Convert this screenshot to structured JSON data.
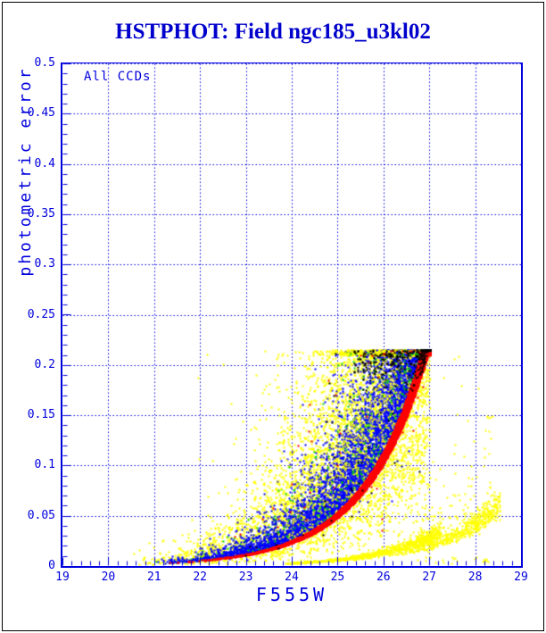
{
  "window": {
    "background": "#ffffff",
    "border_color": "#000000"
  },
  "title": {
    "text": "HSTPHOT: Field ngc185_u3kl02",
    "color": "#0000cc"
  },
  "annotation": {
    "text": "All CCDs"
  },
  "axes": {
    "color": "#0000dd",
    "x": {
      "label": "F555W",
      "min": 19,
      "max": 29,
      "tick_labels": [
        "19",
        "20",
        "21",
        "22",
        "23",
        "24",
        "25",
        "26",
        "27",
        "28",
        "29"
      ],
      "tick_values": [
        19,
        20,
        21,
        22,
        23,
        24,
        25,
        26,
        27,
        28,
        29
      ],
      "minor_step": 0.2
    },
    "y": {
      "label": "photometric error",
      "min": 0,
      "max": 0.5,
      "tick_labels": [
        "0",
        "0.05",
        "0.1",
        "0.15",
        "0.2",
        "0.25",
        "0.3",
        "0.35",
        "0.4",
        "0.45",
        "0.5"
      ],
      "tick_values": [
        0,
        0.05,
        0.1,
        0.15,
        0.2,
        0.25,
        0.3,
        0.35,
        0.4,
        0.45,
        0.5
      ],
      "minor_step": 0.01
    }
  },
  "chart_data": {
    "type": "scatter",
    "title": "HSTPHOT: Field ngc185_u3kl02",
    "xlabel": "F555W",
    "ylabel": "photometric error",
    "annotation": "All CCDs",
    "xlim": [
      19,
      29
    ],
    "ylim": [
      0,
      0.5
    ],
    "grid": "dotted blue lines at every major tick (x: each integer mag, y: each 0.05)",
    "legend": "none (colors denote CCD/detection populations, not labeled on plot)",
    "error_cap": 0.215,
    "error_floor_curve": {
      "description": "lower envelope of photometric error vs magnitude (red sequence), error ~ 0.215*exp(0.75*(m-27)), truncated at error_cap",
      "m": [
        21.0,
        22.0,
        23.0,
        24.0,
        25.0,
        26.0,
        26.5,
        27.0
      ],
      "e": [
        0.0024,
        0.005,
        0.011,
        0.023,
        0.048,
        0.102,
        0.148,
        0.215
      ]
    },
    "populations": [
      {
        "color": "#ffff00",
        "name": "yellow cloud",
        "approx_points": 7000,
        "m_range": [
          20.4,
          27.0
        ],
        "behavior": "widest scatter above floor, reaches error cap 0.215 from m~24 onward; sparse bright tail to m~20.4"
      },
      {
        "color": "#0000ff",
        "name": "blue band",
        "approx_points": 6500,
        "m_range": [
          20.9,
          27.0
        ],
        "behavior": "dense band just above red floor"
      },
      {
        "color": "#00d400",
        "name": "green points",
        "approx_points": 1000,
        "m_range": [
          20.8,
          26.9
        ],
        "behavior": "sprinkled through lower edge of cloud"
      },
      {
        "color": "#ff0000",
        "name": "red floor sequence",
        "approx_points": 4900,
        "m_range": [
          21.0,
          27.0
        ],
        "behavior": "tight lower/right envelope, dense rim rising to cap at m~27"
      },
      {
        "color": "#000000",
        "name": "black points",
        "approx_points": 375,
        "m_range": [
          22.3,
          27.0
        ],
        "behavior": "concentrated along the error cap (0.19-0.215) at m 25.5-27"
      },
      {
        "color": "#ffff00",
        "name": "secondary yellow streak A",
        "approx_points": 850,
        "m_range": [
          23.75,
          27.25
        ],
        "e_range": [
          0.0025,
          0.033
        ],
        "behavior": "thin tight diagonal streak below main cloud"
      },
      {
        "color": "#ffff00",
        "name": "secondary yellow streak B",
        "approx_points": 430,
        "m_range": [
          26.15,
          28.55
        ],
        "e_range": [
          0.012,
          0.062
        ],
        "behavior": "thin streak continuing to right edge"
      },
      {
        "color": "#ffff00",
        "name": "sparse yellow spray right",
        "approx_points": 230,
        "m_range": [
          25.6,
          28.5
        ],
        "e_range": [
          0.003,
          0.2
        ],
        "behavior": "diffuse faint points right of main cloud"
      }
    ],
    "render": {
      "seed": 20185,
      "marker_px": 2,
      "floor_k": 0.75,
      "floor_m_end": 27.0,
      "series": [
        {
          "name": "yellow-main-cloud",
          "color": "#ffff00",
          "kind": "cloud",
          "dist": "lognormal",
          "n": 5200,
          "m_min": 20.4,
          "m_max": 27.02,
          "p": 0.4,
          "mu": 0.95,
          "sigma": 0.75
        },
        {
          "name": "green-main",
          "color": "#00d400",
          "kind": "cloud",
          "dist": "halfnormal",
          "n": 780,
          "m_min": 20.8,
          "m_max": 26.9,
          "p": 0.45,
          "off": 0.06,
          "sigma": 0.6
        },
        {
          "name": "blue-main",
          "color": "#0000ff",
          "kind": "cloud",
          "dist": "halfnormal",
          "n": 6500,
          "m_min": 20.9,
          "m_max": 27.0,
          "p": 0.38,
          "off": 0.07,
          "sigma": 0.5
        },
        {
          "name": "yellow-overlay",
          "color": "#ffff00",
          "kind": "cloud",
          "dist": "lognormal",
          "n": 1700,
          "m_min": 23.3,
          "m_max": 27.0,
          "p": 0.5,
          "mu": 0.95,
          "sigma": 0.7
        },
        {
          "name": "green-overlay",
          "color": "#00d400",
          "kind": "cloud",
          "dist": "halfnormal",
          "n": 200,
          "m_min": 23.0,
          "m_max": 26.85,
          "p": 0.5,
          "off": 0.08,
          "sigma": 0.55
        },
        {
          "name": "blue-sprinkle",
          "color": "#0000ff",
          "kind": "cloud",
          "dist": "lognormal",
          "n": 70,
          "m_min": 22.0,
          "m_max": 26.8,
          "p": 0.5,
          "mu": 0.9,
          "sigma": 0.6
        },
        {
          "name": "red-sprinkle",
          "color": "#ff0000",
          "kind": "cloud",
          "dist": "lognormal",
          "n": 60,
          "m_min": 22.5,
          "m_max": 26.9,
          "p": 0.5,
          "mu": 0.8,
          "sigma": 0.6
        },
        {
          "name": "red-envelope",
          "color": "#ff0000",
          "kind": "cloud",
          "dist": "uniform",
          "n": 4800,
          "m_min": 21.0,
          "m_max": 27.02,
          "p": 0.3,
          "lo": 0.0,
          "hi": 0.12
        },
        {
          "name": "yellow-streak-a",
          "color": "#ffff00",
          "kind": "streak",
          "n": 850,
          "m_min": 23.75,
          "m_max": 27.25,
          "p": 0.55,
          "a": 0.0025,
          "k": 0.758,
          "scatter": 0.13
        },
        {
          "name": "yellow-streak-b",
          "color": "#ffff00",
          "kind": "streak",
          "n": 430,
          "m_min": 26.15,
          "m_max": 28.55,
          "p": 0.5,
          "a": 0.0115,
          "k": 0.7,
          "scatter": 0.13
        },
        {
          "name": "yellow-spray-right",
          "color": "#ffff00",
          "kind": "spray",
          "n": 200,
          "m_min": 25.6,
          "m_max": 28.4,
          "p": 0.5,
          "a": 0.006,
          "k": 0.62,
          "off": 0.25,
          "sigma": 0.8
        },
        {
          "name": "yellow-faint-dots",
          "color": "#ffff00",
          "kind": "box",
          "n": 22,
          "m_min": 26.7,
          "m_max": 28.35,
          "e_min": 0.002,
          "e_max": 0.009
        },
        {
          "name": "yellow-high-outliers",
          "color": "#ffff00",
          "kind": "box",
          "n": 10,
          "m_min": 21.2,
          "m_max": 25.3,
          "e_min": 0.15,
          "e_max": 0.214
        },
        {
          "name": "black-sprinkle",
          "color": "#000000",
          "kind": "cloud",
          "dist": "lognormal",
          "n": 45,
          "m_min": 22.3,
          "m_max": 26.8,
          "p": 0.5,
          "mu": 0.55,
          "sigma": 0.55
        },
        {
          "name": "black-cap",
          "color": "#000000",
          "kind": "capband",
          "n": 330,
          "m_min": 25.35,
          "m_max": 27.02,
          "pw": 2.2,
          "sigma": 0.085
        }
      ]
    }
  }
}
